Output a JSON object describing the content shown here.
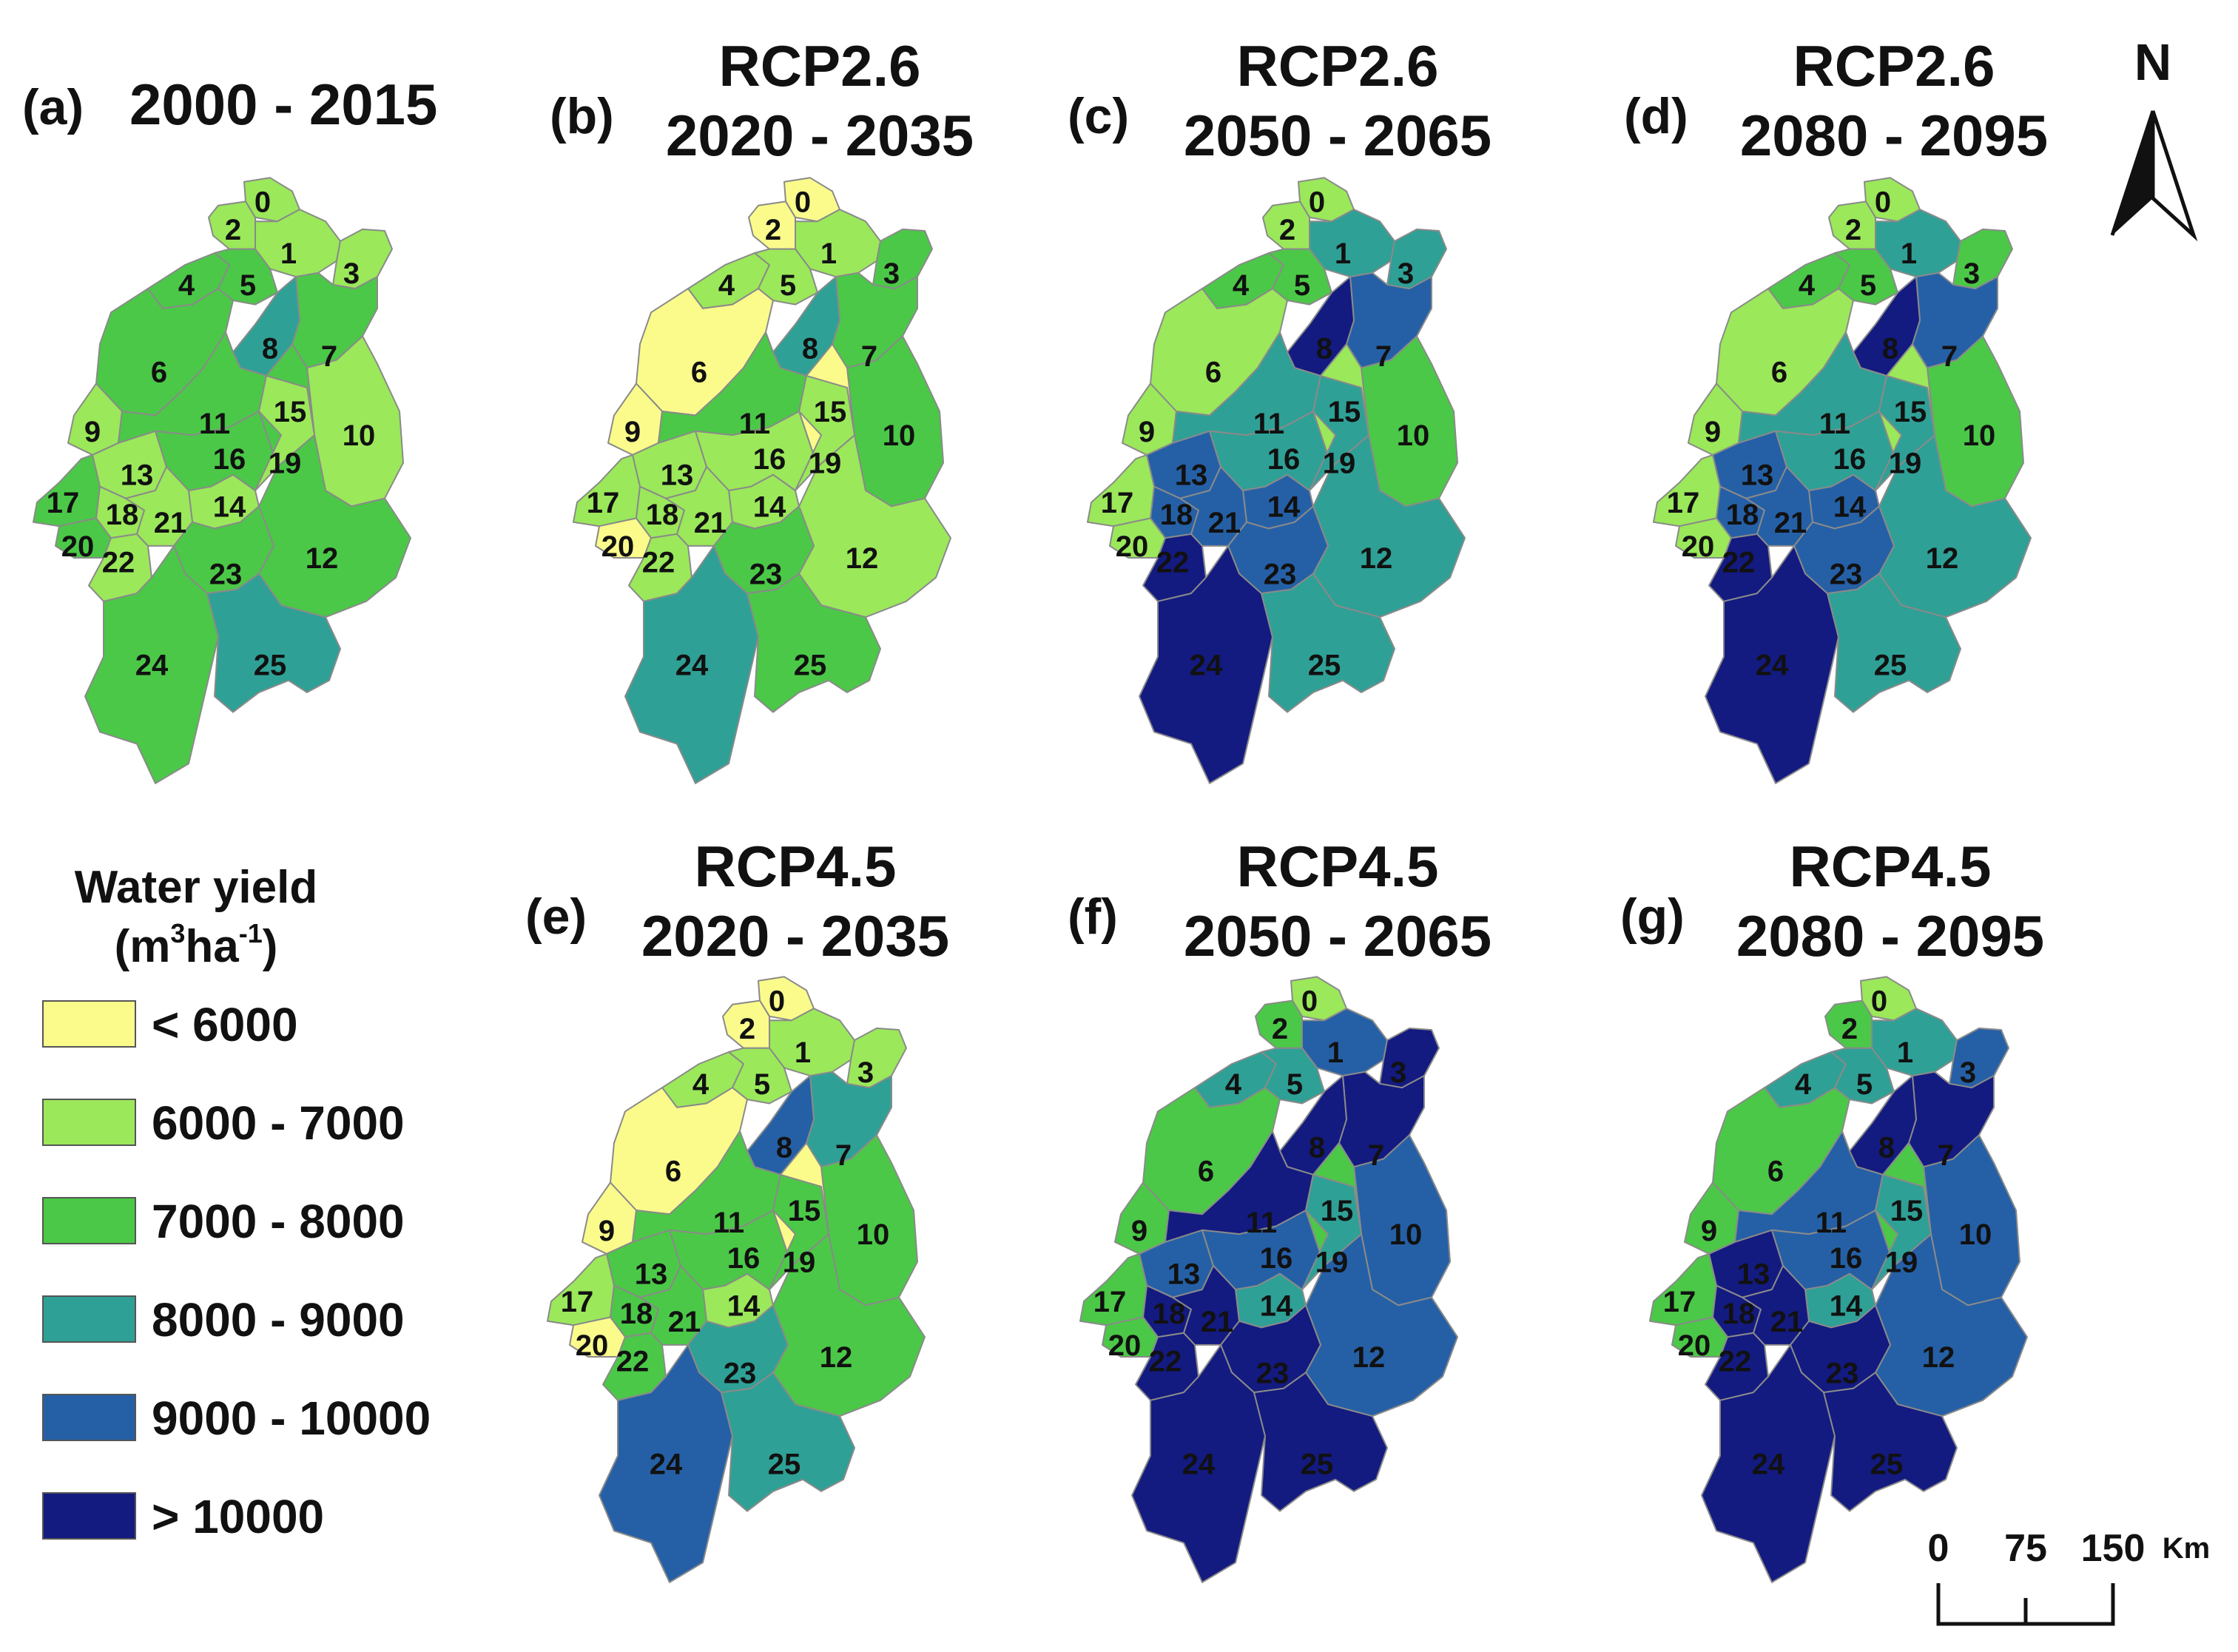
{
  "palette": {
    "c0": "#fbfb8c",
    "c1": "#9be85a",
    "c2": "#4bc847",
    "c3": "#2fa096",
    "c4": "#2560a6",
    "c5": "#131a80",
    "border": "#8a8a8a"
  },
  "panels": [
    {
      "letter": "(a)",
      "scenario": "",
      "period": "2000 - 2015",
      "classes": [
        1,
        1,
        1,
        1,
        2,
        2,
        2,
        2,
        3,
        1,
        1,
        2,
        2,
        1,
        1,
        2,
        2,
        2,
        1,
        1,
        2,
        1,
        1,
        2,
        2,
        3
      ]
    },
    {
      "letter": "(b)",
      "scenario": "RCP2.6",
      "period": "2020 - 2035",
      "classes": [
        0,
        1,
        0,
        2,
        1,
        1,
        0,
        2,
        3,
        0,
        2,
        2,
        1,
        1,
        1,
        0,
        1,
        1,
        1,
        1,
        0,
        1,
        1,
        2,
        3,
        2
      ]
    },
    {
      "letter": "(c)",
      "scenario": "RCP2.6",
      "period": "2050 - 2065",
      "classes": [
        1,
        3,
        1,
        3,
        2,
        2,
        1,
        4,
        5,
        1,
        2,
        3,
        3,
        4,
        4,
        1,
        3,
        1,
        4,
        3,
        1,
        4,
        5,
        4,
        5,
        3
      ]
    },
    {
      "letter": "(d)",
      "scenario": "RCP2.6",
      "period": "2080 - 2095",
      "classes": [
        1,
        3,
        1,
        2,
        2,
        2,
        1,
        4,
        5,
        1,
        2,
        3,
        3,
        4,
        4,
        1,
        3,
        1,
        4,
        3,
        1,
        4,
        5,
        4,
        5,
        3
      ]
    },
    {
      "letter": "(e)",
      "scenario": "RCP4.5",
      "period": "2020 - 2035",
      "classes": [
        0,
        1,
        0,
        1,
        1,
        1,
        0,
        3,
        4,
        0,
        2,
        2,
        2,
        2,
        1,
        0,
        2,
        1,
        2,
        2,
        0,
        2,
        2,
        3,
        4,
        3
      ]
    },
    {
      "letter": "(f)",
      "scenario": "RCP4.5",
      "period": "2050 - 2065",
      "classes": [
        1,
        4,
        2,
        5,
        3,
        3,
        2,
        5,
        5,
        2,
        4,
        5,
        4,
        4,
        3,
        2,
        4,
        2,
        5,
        3,
        2,
        5,
        5,
        5,
        5,
        5
      ]
    },
    {
      "letter": "(g)",
      "scenario": "RCP4.5",
      "period": "2080 - 2095",
      "classes": [
        1,
        3,
        2,
        4,
        3,
        3,
        2,
        5,
        5,
        2,
        4,
        4,
        4,
        5,
        3,
        2,
        4,
        2,
        5,
        3,
        2,
        5,
        5,
        5,
        5,
        5
      ]
    }
  ],
  "legend": {
    "title_line1": "Water yield",
    "unit_m": "m",
    "unit_sup1": "3",
    "unit_ha": "ha",
    "unit_sup2": "-1",
    "items": [
      {
        "label": "< 6000",
        "cls": 0
      },
      {
        "label": "6000 - 7000",
        "cls": 1
      },
      {
        "label": "7000 - 8000",
        "cls": 2
      },
      {
        "label": "8000 - 9000",
        "cls": 3
      },
      {
        "label": "9000 - 10000",
        "cls": 4
      },
      {
        "label": "> 10000",
        "cls": 5
      }
    ]
  },
  "north_arrow": {
    "label": "N",
    "icon": "north-arrow-icon"
  },
  "scalebar": {
    "ticks": [
      "0",
      "75",
      "150"
    ],
    "unit": "Km"
  }
}
